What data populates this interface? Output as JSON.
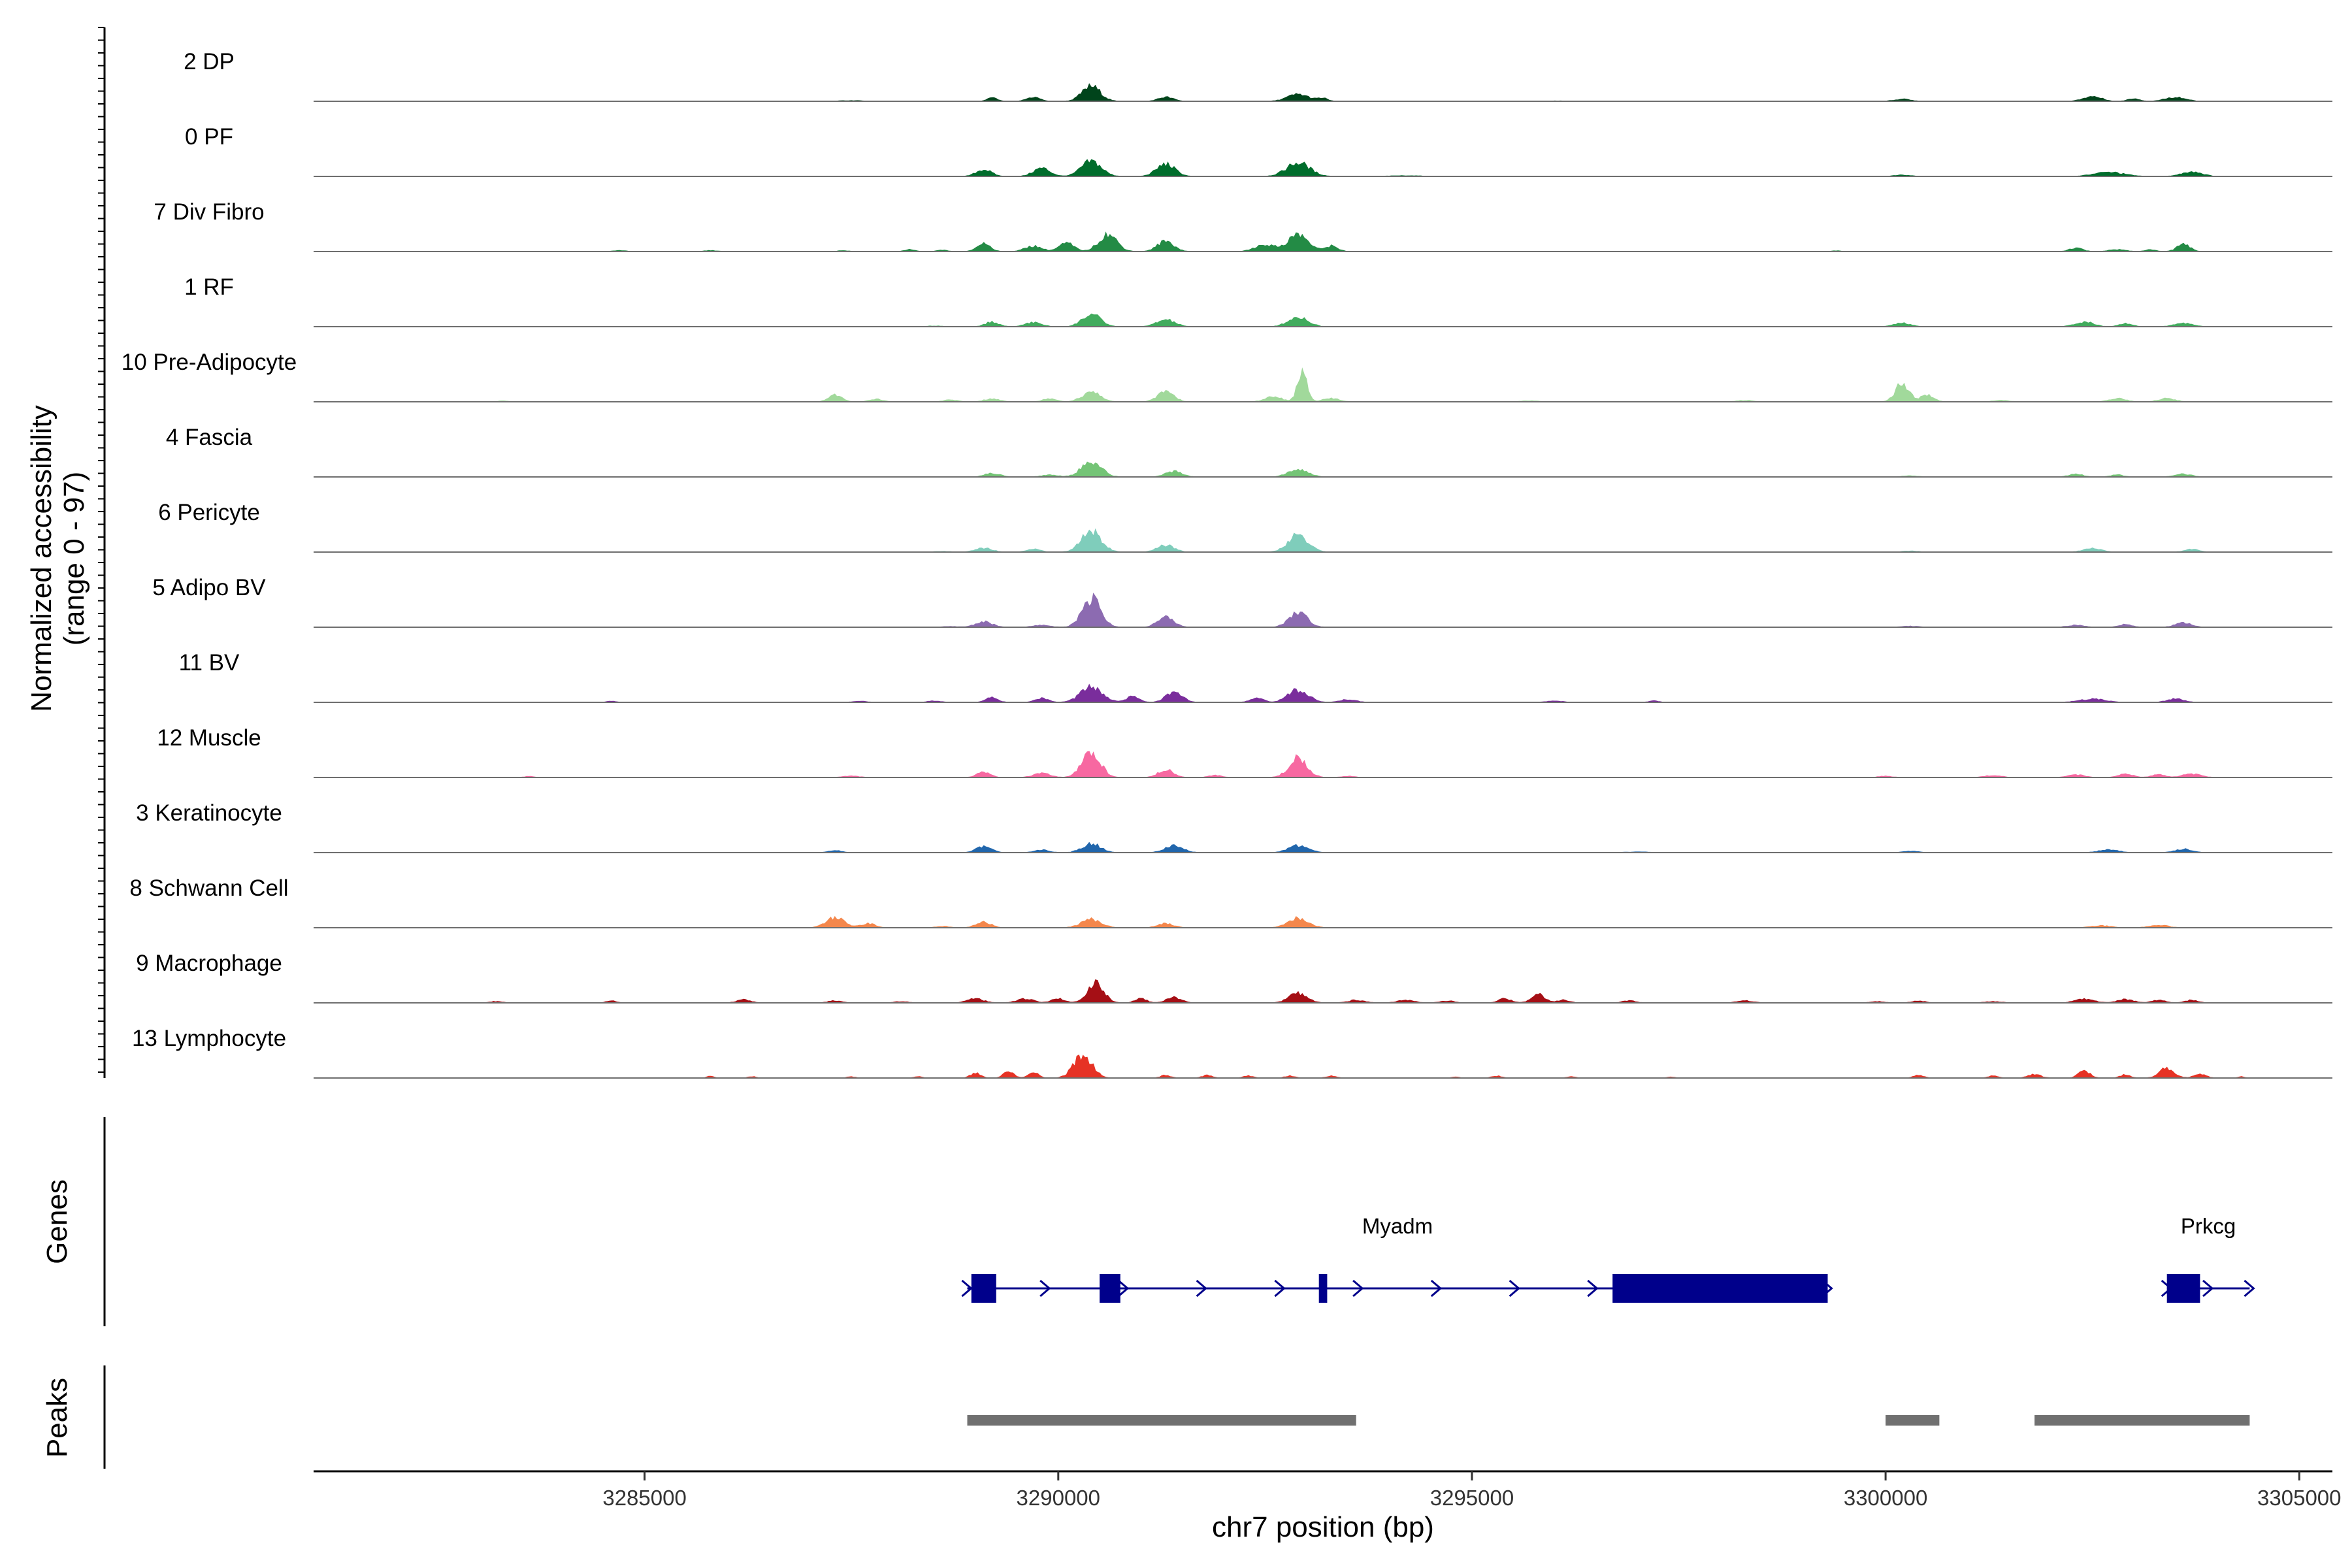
{
  "chart_data": {
    "type": "area",
    "title": "",
    "ylabel": "Normalized accessibility",
    "ylabel_range": "(range 0 - 97)",
    "xlabel": "chr7 position (bp)",
    "xlim": [
      3281000,
      3305400
    ],
    "ylim": [
      0,
      97
    ],
    "x_ticks": [
      3285000,
      3290000,
      3295000,
      3300000,
      3305000
    ],
    "x_tick_labels": [
      "3285000",
      "3290000",
      "3295000",
      "3300000",
      "3305000"
    ],
    "series": [
      {
        "name": "2 DP",
        "color": "#00441b",
        "peaks": [
          [
            3289200,
            5,
            60
          ],
          [
            3289700,
            6,
            80
          ],
          [
            3290400,
            22,
            110
          ],
          [
            3291300,
            6,
            90
          ],
          [
            3292900,
            10,
            130
          ],
          [
            3293200,
            4,
            60
          ],
          [
            3300200,
            3,
            100
          ],
          [
            3302500,
            7,
            110
          ],
          [
            3303000,
            4,
            70
          ],
          [
            3303500,
            6,
            120
          ],
          [
            3287500,
            1,
            150
          ],
          [
            3296000,
            0.5,
            150
          ]
        ]
      },
      {
        "name": "0 PF",
        "color": "#006d2c",
        "peaks": [
          [
            3289100,
            10,
            90
          ],
          [
            3289800,
            12,
            100
          ],
          [
            3290400,
            22,
            120
          ],
          [
            3291300,
            18,
            110
          ],
          [
            3292900,
            20,
            140
          ],
          [
            3302700,
            6,
            180
          ],
          [
            3303700,
            7,
            120
          ],
          [
            3300200,
            2,
            100
          ],
          [
            3294200,
            1,
            200
          ]
        ]
      },
      {
        "name": "7 Div Fibro",
        "color": "#238b45",
        "peaks": [
          [
            3289100,
            12,
            80
          ],
          [
            3289700,
            8,
            100
          ],
          [
            3290100,
            12,
            90
          ],
          [
            3290600,
            25,
            110
          ],
          [
            3291300,
            15,
            100
          ],
          [
            3292500,
            10,
            120
          ],
          [
            3292900,
            25,
            120
          ],
          [
            3293300,
            8,
            80
          ],
          [
            3288200,
            3,
            60
          ],
          [
            3288600,
            2,
            60
          ],
          [
            3302300,
            5,
            80
          ],
          [
            3303600,
            10,
            80
          ],
          [
            3284700,
            1.5,
            80
          ],
          [
            3285800,
            1.5,
            80
          ],
          [
            3287400,
            1.5,
            60
          ],
          [
            3299400,
            1,
            60
          ],
          [
            3302800,
            3,
            100
          ],
          [
            3303200,
            3,
            60
          ]
        ]
      },
      {
        "name": "1 RF",
        "color": "#41ab5d",
        "peaks": [
          [
            3289200,
            7,
            80
          ],
          [
            3289700,
            6,
            100
          ],
          [
            3290400,
            18,
            110
          ],
          [
            3291300,
            10,
            110
          ],
          [
            3292900,
            14,
            120
          ],
          [
            3300200,
            5,
            100
          ],
          [
            3302400,
            7,
            110
          ],
          [
            3302900,
            5,
            80
          ],
          [
            3303600,
            5,
            110
          ],
          [
            3288500,
            1,
            100
          ]
        ]
      },
      {
        "name": "10 Pre-Adipocyte",
        "color": "#a1d99b",
        "peaks": [
          [
            3287300,
            10,
            80
          ],
          [
            3287800,
            4,
            80
          ],
          [
            3289200,
            4,
            100
          ],
          [
            3289900,
            5,
            80
          ],
          [
            3290400,
            14,
            110
          ],
          [
            3291300,
            14,
            100
          ],
          [
            3292600,
            8,
            100
          ],
          [
            3292950,
            40,
            60
          ],
          [
            3293300,
            5,
            100
          ],
          [
            3300200,
            28,
            80
          ],
          [
            3300500,
            10,
            80
          ],
          [
            3302800,
            5,
            100
          ],
          [
            3303400,
            5,
            100
          ],
          [
            3288700,
            3,
            80
          ],
          [
            3283300,
            1.5,
            60
          ],
          [
            3295700,
            1.5,
            100
          ],
          [
            3298300,
            2,
            100
          ],
          [
            3301400,
            2,
            100
          ]
        ]
      },
      {
        "name": "4 Fascia",
        "color": "#74c476",
        "peaks": [
          [
            3289200,
            5,
            100
          ],
          [
            3289900,
            3,
            100
          ],
          [
            3290400,
            22,
            120
          ],
          [
            3291400,
            8,
            100
          ],
          [
            3292900,
            11,
            120
          ],
          [
            3302300,
            4,
            90
          ],
          [
            3302800,
            3,
            80
          ],
          [
            3303600,
            4,
            100
          ],
          [
            3300300,
            1.5,
            100
          ]
        ]
      },
      {
        "name": "6 Pericyte",
        "color": "#7fcdbb",
        "peaks": [
          [
            3289100,
            6,
            100
          ],
          [
            3289700,
            5,
            80
          ],
          [
            3290400,
            30,
            120
          ],
          [
            3291300,
            10,
            100
          ],
          [
            3292900,
            25,
            120
          ],
          [
            3302500,
            5,
            110
          ],
          [
            3303700,
            4,
            90
          ],
          [
            3300300,
            1.5,
            100
          ],
          [
            3288600,
            1,
            100
          ]
        ]
      },
      {
        "name": "5 Adipo BV",
        "color": "#8c6bb1",
        "peaks": [
          [
            3289100,
            8,
            100
          ],
          [
            3289800,
            3,
            100
          ],
          [
            3290400,
            42,
            110
          ],
          [
            3291300,
            14,
            100
          ],
          [
            3292900,
            22,
            110
          ],
          [
            3302300,
            3,
            100
          ],
          [
            3302900,
            4,
            80
          ],
          [
            3303600,
            6,
            100
          ],
          [
            3300300,
            1.5,
            100
          ],
          [
            3288700,
            1,
            100
          ]
        ]
      },
      {
        "name": "11 BV",
        "color": "#7a2d9c",
        "peaks": [
          [
            3289200,
            8,
            70
          ],
          [
            3289800,
            6,
            80
          ],
          [
            3290400,
            22,
            130
          ],
          [
            3290900,
            8,
            80
          ],
          [
            3291400,
            14,
            100
          ],
          [
            3292400,
            6,
            80
          ],
          [
            3292900,
            18,
            120
          ],
          [
            3293500,
            4,
            100
          ],
          [
            3284600,
            2,
            50
          ],
          [
            3287600,
            2,
            80
          ],
          [
            3288500,
            2,
            80
          ],
          [
            3296000,
            2,
            100
          ],
          [
            3302500,
            5,
            150
          ],
          [
            3303500,
            5,
            100
          ],
          [
            3297200,
            2,
            60
          ]
        ]
      },
      {
        "name": "12 Muscle",
        "color": "#f768a1",
        "peaks": [
          [
            3289100,
            8,
            80
          ],
          [
            3289800,
            6,
            100
          ],
          [
            3290400,
            36,
            110
          ],
          [
            3291300,
            12,
            90
          ],
          [
            3292900,
            28,
            110
          ],
          [
            3287500,
            2,
            100
          ],
          [
            3283600,
            1.5,
            60
          ],
          [
            3302300,
            4,
            100
          ],
          [
            3302900,
            5,
            90
          ],
          [
            3303300,
            4,
            80
          ],
          [
            3303700,
            5,
            110
          ],
          [
            3301300,
            3,
            100
          ],
          [
            3300000,
            2,
            80
          ],
          [
            3291900,
            3,
            80
          ],
          [
            3293500,
            2,
            80
          ]
        ]
      },
      {
        "name": "3 Keratinocyte",
        "color": "#2166ac",
        "peaks": [
          [
            3289100,
            9,
            90
          ],
          [
            3289800,
            4,
            90
          ],
          [
            3290400,
            13,
            110
          ],
          [
            3291400,
            10,
            110
          ],
          [
            3292900,
            10,
            120
          ],
          [
            3287300,
            3,
            80
          ],
          [
            3302700,
            4,
            120
          ],
          [
            3303600,
            5,
            100
          ],
          [
            3300300,
            2,
            100
          ],
          [
            3297000,
            1,
            150
          ]
        ]
      },
      {
        "name": "8 Schwann Cell",
        "color": "#f4874c",
        "peaks": [
          [
            3287300,
            15,
            110
          ],
          [
            3287700,
            6,
            90
          ],
          [
            3289100,
            8,
            90
          ],
          [
            3290400,
            12,
            120
          ],
          [
            3291300,
            6,
            100
          ],
          [
            3292900,
            14,
            120
          ],
          [
            3302600,
            3,
            120
          ],
          [
            3303300,
            4,
            110
          ],
          [
            3288600,
            2,
            80
          ]
        ]
      },
      {
        "name": "9 Macrophage",
        "color": "#a50f15",
        "peaks": [
          [
            3283200,
            2,
            80
          ],
          [
            3284600,
            3,
            60
          ],
          [
            3286200,
            5,
            80
          ],
          [
            3287300,
            3,
            80
          ],
          [
            3289000,
            6,
            100
          ],
          [
            3289600,
            6,
            100
          ],
          [
            3290000,
            6,
            80
          ],
          [
            3290450,
            28,
            100
          ],
          [
            3291000,
            6,
            70
          ],
          [
            3291400,
            8,
            90
          ],
          [
            3292900,
            14,
            110
          ],
          [
            3293600,
            4,
            100
          ],
          [
            3294200,
            4,
            100
          ],
          [
            3294700,
            3,
            80
          ],
          [
            3295400,
            6,
            80
          ],
          [
            3295800,
            12,
            80
          ],
          [
            3296100,
            4,
            80
          ],
          [
            3296900,
            3,
            80
          ],
          [
            3298300,
            3,
            100
          ],
          [
            3299900,
            2,
            80
          ],
          [
            3300400,
            3,
            80
          ],
          [
            3301300,
            2,
            100
          ],
          [
            3302400,
            6,
            110
          ],
          [
            3302900,
            5,
            100
          ],
          [
            3303300,
            4,
            80
          ],
          [
            3303700,
            4,
            80
          ],
          [
            3288100,
            2,
            80
          ]
        ]
      },
      {
        "name": "13 Lymphocyte",
        "color": "#e63225",
        "peaks": [
          [
            3285800,
            3,
            40
          ],
          [
            3286300,
            2,
            50
          ],
          [
            3287500,
            2,
            50
          ],
          [
            3288300,
            2,
            50
          ],
          [
            3289000,
            7,
            60
          ],
          [
            3289400,
            10,
            60
          ],
          [
            3289700,
            8,
            60
          ],
          [
            3290300,
            34,
            110
          ],
          [
            3291300,
            4,
            60
          ],
          [
            3291800,
            4,
            60
          ],
          [
            3292300,
            3,
            60
          ],
          [
            3292800,
            3,
            60
          ],
          [
            3293300,
            3,
            60
          ],
          [
            3294800,
            2,
            40
          ],
          [
            3295300,
            3,
            60
          ],
          [
            3296200,
            2,
            50
          ],
          [
            3297400,
            1.5,
            50
          ],
          [
            3300400,
            4,
            60
          ],
          [
            3301300,
            3,
            60
          ],
          [
            3301800,
            5,
            80
          ],
          [
            3302400,
            10,
            70
          ],
          [
            3302900,
            5,
            60
          ],
          [
            3303400,
            14,
            90
          ],
          [
            3303800,
            6,
            70
          ],
          [
            3304300,
            2,
            40
          ]
        ]
      }
    ],
    "genes": {
      "strand": "+",
      "color": "#00008b",
      "items": [
        {
          "name": "Myadm",
          "start": 3288900,
          "end": 3299300,
          "exons": [
            [
              3288950,
              3289250
            ],
            [
              3290500,
              3290750
            ],
            [
              3293150,
              3293250
            ],
            [
              3296700,
              3299300
            ]
          ]
        },
        {
          "name": "Prkcg",
          "start": 3303400,
          "end": 3304400,
          "exons": [
            [
              3303400,
              3303800
            ]
          ]
        }
      ]
    },
    "peaks_track": {
      "color": "#707070",
      "regions": [
        [
          3288900,
          3293600
        ],
        [
          3300000,
          3300650
        ],
        [
          3301800,
          3304400
        ]
      ]
    },
    "panel_labels": {
      "genes": "Genes",
      "peaks": "Peaks"
    }
  }
}
